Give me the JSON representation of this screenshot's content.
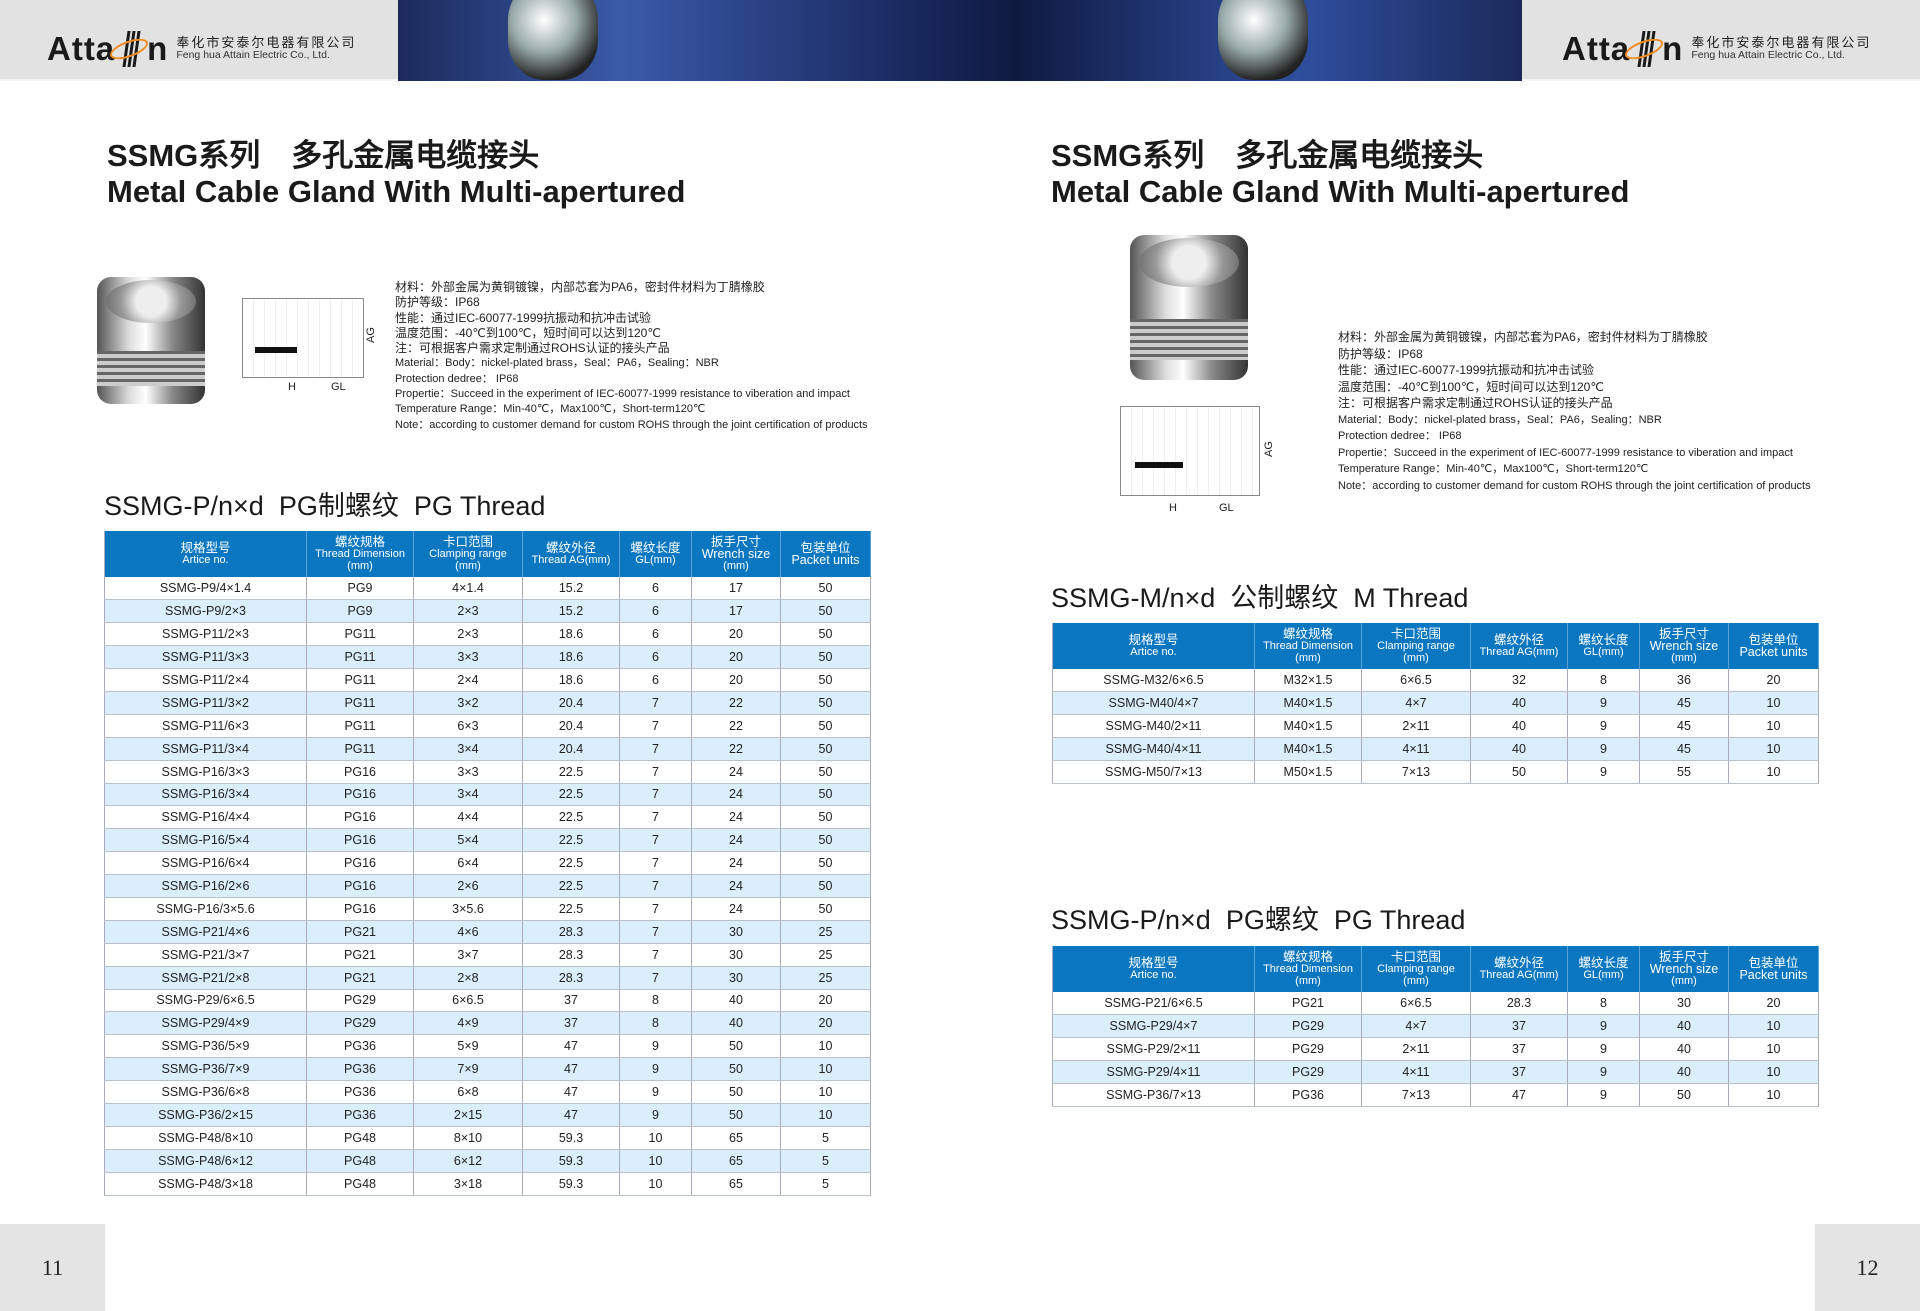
{
  "header": {
    "logo_word_left": "Atta",
    "logo_word_right": "n",
    "company_cn": "奉化市安泰尔电器有限公司",
    "company_en": "Feng hua Attain Electric Co., Ltd.",
    "brand": "Attain"
  },
  "colors": {
    "table_header": "#0b77c0",
    "alt_row": "#dbeefb",
    "logo_ring": "#f08a1c"
  },
  "left_page": {
    "title_cn": "SSMG系列　多孔金属电缆接头",
    "title_en": "Metal Cable Gland With Multi-apertured",
    "drawing_labels": {
      "ag": "AG",
      "h": "H",
      "gl": "GL"
    },
    "spec": [
      "材料：外部金属为黄铜镀镍，内部芯套为PA6，密封件材料为丁腈橡胶",
      "防护等级：IP68",
      "性能：通过IEC-60077-1999抗振动和抗冲击试验",
      "温度范围：-40℃到100℃，短时间可以达到120℃",
      "注：可根据客户需求定制通过ROHS认证的接头产品",
      "Material：Body：nickel-plated brass，Seal：PA6，Sealing：NBR",
      "Protection dedree： IP68",
      "Propertie：Succeed in the experiment of IEC-60077-1999 resistance to viberation and impact",
      "Temperature Range：Min-40℃，Max100℃，Short-term120℃",
      "Note：according to customer demand for custom ROHS through the joint certification of products"
    ],
    "section": "SSMG-P/n×d  PG制螺纹  PG Thread",
    "page_number": "11"
  },
  "right_page": {
    "title_cn": "SSMG系列　多孔金属电缆接头",
    "title_en": "Metal Cable Gland With Multi-apertured",
    "drawing_labels": {
      "ag": "AG",
      "h": "H",
      "gl": "GL"
    },
    "spec": [
      "材料：外部金属为黄铜镀镍，内部芯套为PA6，密封件材料为丁腈橡胶",
      "防护等级：IP68",
      "性能：通过IEC-60077-1999抗振动和抗冲击试验",
      "温度范围：-40℃到100℃，短时间可以达到120℃",
      "注：可根据客户需求定制通过ROHS认证的接头产品",
      "Material：Body：nickel-plated brass，Seal：PA6，Sealing：NBR",
      "Protection dedree： IP68",
      "Propertie：Succeed in the experiment of IEC-60077-1999 resistance to viberation and impact",
      "Temperature Range：Min-40℃，Max100℃，Short-term120℃",
      "Note：according to customer demand for custom ROHS through the joint certification of products"
    ],
    "section_m": "SSMG-M/n×d  公制螺纹  M Thread",
    "section_pg": "SSMG-P/n×d  PG螺纹  PG Thread",
    "page_number": "12"
  },
  "columns": [
    {
      "cn": "规格型号",
      "en": "Artice no."
    },
    {
      "cn": "螺纹规格",
      "en": "Thread Dimension\n(mm)"
    },
    {
      "cn": "卡口范围",
      "en": "Clamping range\n(mm)"
    },
    {
      "cn": "螺纹外径",
      "en": "Thread AG(mm)"
    },
    {
      "cn": "螺纹长度",
      "en": "GL(mm)"
    },
    {
      "cn": "扳手尺寸",
      "en": "Wrench size\n(mm)"
    },
    {
      "cn": "包装单位",
      "en": "Packet units"
    }
  ],
  "table_pg_left": [
    [
      "SSMG-P9/4×1.4",
      "PG9",
      "4×1.4",
      "15.2",
      "6",
      "17",
      "50"
    ],
    [
      "SSMG-P9/2×3",
      "PG9",
      "2×3",
      "15.2",
      "6",
      "17",
      "50"
    ],
    [
      "SSMG-P11/2×3",
      "PG11",
      "2×3",
      "18.6",
      "6",
      "20",
      "50"
    ],
    [
      "SSMG-P11/3×3",
      "PG11",
      "3×3",
      "18.6",
      "6",
      "20",
      "50"
    ],
    [
      "SSMG-P11/2×4",
      "PG11",
      "2×4",
      "18.6",
      "6",
      "20",
      "50"
    ],
    [
      "SSMG-P11/3×2",
      "PG11",
      "3×2",
      "20.4",
      "7",
      "22",
      "50"
    ],
    [
      "SSMG-P11/6×3",
      "PG11",
      "6×3",
      "20.4",
      "7",
      "22",
      "50"
    ],
    [
      "SSMG-P11/3×4",
      "PG11",
      "3×4",
      "20.4",
      "7",
      "22",
      "50"
    ],
    [
      "SSMG-P16/3×3",
      "PG16",
      "3×3",
      "22.5",
      "7",
      "24",
      "50"
    ],
    [
      "SSMG-P16/3×4",
      "PG16",
      "3×4",
      "22.5",
      "7",
      "24",
      "50"
    ],
    [
      "SSMG-P16/4×4",
      "PG16",
      "4×4",
      "22.5",
      "7",
      "24",
      "50"
    ],
    [
      "SSMG-P16/5×4",
      "PG16",
      "5×4",
      "22.5",
      "7",
      "24",
      "50"
    ],
    [
      "SSMG-P16/6×4",
      "PG16",
      "6×4",
      "22.5",
      "7",
      "24",
      "50"
    ],
    [
      "SSMG-P16/2×6",
      "PG16",
      "2×6",
      "22.5",
      "7",
      "24",
      "50"
    ],
    [
      "SSMG-P16/3×5.6",
      "PG16",
      "3×5.6",
      "22.5",
      "7",
      "24",
      "50"
    ],
    [
      "SSMG-P21/4×6",
      "PG21",
      "4×6",
      "28.3",
      "7",
      "30",
      "25"
    ],
    [
      "SSMG-P21/3×7",
      "PG21",
      "3×7",
      "28.3",
      "7",
      "30",
      "25"
    ],
    [
      "SSMG-P21/2×8",
      "PG21",
      "2×8",
      "28.3",
      "7",
      "30",
      "25"
    ],
    [
      "SSMG-P29/6×6.5",
      "PG29",
      "6×6.5",
      "37",
      "8",
      "40",
      "20"
    ],
    [
      "SSMG-P29/4×9",
      "PG29",
      "4×9",
      "37",
      "8",
      "40",
      "20"
    ],
    [
      "SSMG-P36/5×9",
      "PG36",
      "5×9",
      "47",
      "9",
      "50",
      "10"
    ],
    [
      "SSMG-P36/7×9",
      "PG36",
      "7×9",
      "47",
      "9",
      "50",
      "10"
    ],
    [
      "SSMG-P36/6×8",
      "PG36",
      "6×8",
      "47",
      "9",
      "50",
      "10"
    ],
    [
      "SSMG-P36/2×15",
      "PG36",
      "2×15",
      "47",
      "9",
      "50",
      "10"
    ],
    [
      "SSMG-P48/8×10",
      "PG48",
      "8×10",
      "59.3",
      "10",
      "65",
      "5"
    ],
    [
      "SSMG-P48/6×12",
      "PG48",
      "6×12",
      "59.3",
      "10",
      "65",
      "5"
    ],
    [
      "SSMG-P48/3×18",
      "PG48",
      "3×18",
      "59.3",
      "10",
      "65",
      "5"
    ]
  ],
  "table_m": [
    [
      "SSMG-M32/6×6.5",
      "M32×1.5",
      "6×6.5",
      "32",
      "8",
      "36",
      "20"
    ],
    [
      "SSMG-M40/4×7",
      "M40×1.5",
      "4×7",
      "40",
      "9",
      "45",
      "10"
    ],
    [
      "SSMG-M40/2×11",
      "M40×1.5",
      "2×11",
      "40",
      "9",
      "45",
      "10"
    ],
    [
      "SSMG-M40/4×11",
      "M40×1.5",
      "4×11",
      "40",
      "9",
      "45",
      "10"
    ],
    [
      "SSMG-M50/7×13",
      "M50×1.5",
      "7×13",
      "50",
      "9",
      "55",
      "10"
    ]
  ],
  "table_pg_right": [
    [
      "SSMG-P21/6×6.5",
      "PG21",
      "6×6.5",
      "28.3",
      "8",
      "30",
      "20"
    ],
    [
      "SSMG-P29/4×7",
      "PG29",
      "4×7",
      "37",
      "9",
      "40",
      "10"
    ],
    [
      "SSMG-P29/2×11",
      "PG29",
      "2×11",
      "37",
      "9",
      "40",
      "10"
    ],
    [
      "SSMG-P29/4×11",
      "PG29",
      "4×11",
      "37",
      "9",
      "40",
      "10"
    ],
    [
      "SSMG-P36/7×13",
      "PG36",
      "7×13",
      "47",
      "9",
      "50",
      "10"
    ]
  ]
}
